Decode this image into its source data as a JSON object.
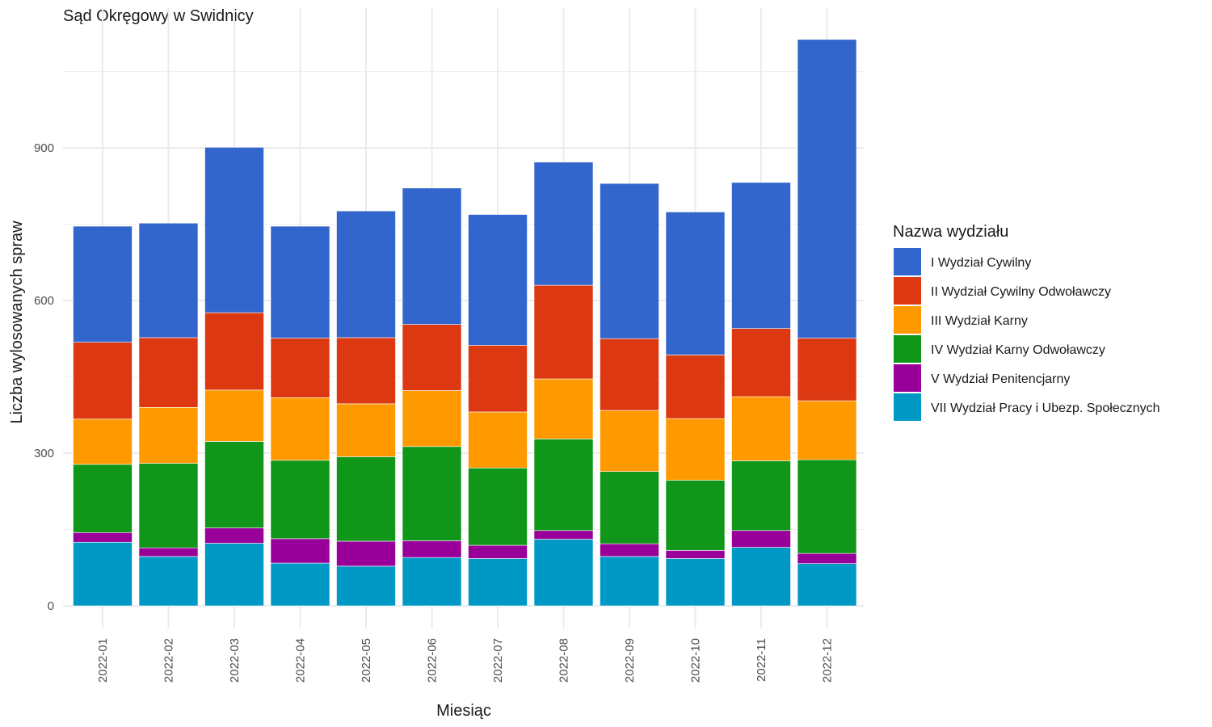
{
  "chart_data": {
    "type": "bar",
    "stacked": true,
    "title": "Sąd Okręgowy w Swidnicy",
    "xlabel": "Miesiąc",
    "ylabel": "Liczba wylosowanych spraw",
    "ylim": [
      0,
      1125
    ],
    "yticks": [
      0,
      300,
      600,
      900
    ],
    "grid": true,
    "legend_title": "Nazwa wydziału",
    "legend_position": "right",
    "categories": [
      "2022-01",
      "2022-02",
      "2022-03",
      "2022-04",
      "2022-05",
      "2022-06",
      "2022-07",
      "2022-08",
      "2022-09",
      "2022-10",
      "2022-11",
      "2022-12"
    ],
    "series": [
      {
        "name": "VII Wydział Pracy i Ubezp. Społecznych",
        "color": "#0099C6",
        "values": [
          125,
          97,
          123,
          84,
          78,
          95,
          93,
          131,
          97,
          93,
          115,
          83
        ]
      },
      {
        "name": "V Wydział Penitencjarny",
        "color": "#990099",
        "values": [
          19,
          17,
          30,
          48,
          49,
          33,
          26,
          17,
          25,
          16,
          33,
          20
        ]
      },
      {
        "name": "IV Wydział Karny Odwoławczy",
        "color": "#109618",
        "values": [
          134,
          166,
          170,
          154,
          166,
          185,
          152,
          180,
          142,
          138,
          137,
          184
        ]
      },
      {
        "name": "III Wydział Karny",
        "color": "#FF9900",
        "values": [
          89,
          110,
          101,
          123,
          104,
          110,
          110,
          118,
          120,
          121,
          126,
          116
        ]
      },
      {
        "name": "II Wydział Cywilny Odwoławczy",
        "color": "#DC3912",
        "values": [
          151,
          137,
          152,
          117,
          130,
          130,
          131,
          184,
          141,
          125,
          134,
          123
        ]
      },
      {
        "name": "I Wydział Cywilny",
        "color": "#3366CC",
        "values": [
          228,
          225,
          325,
          220,
          249,
          268,
          257,
          242,
          305,
          281,
          287,
          587
        ]
      }
    ]
  }
}
